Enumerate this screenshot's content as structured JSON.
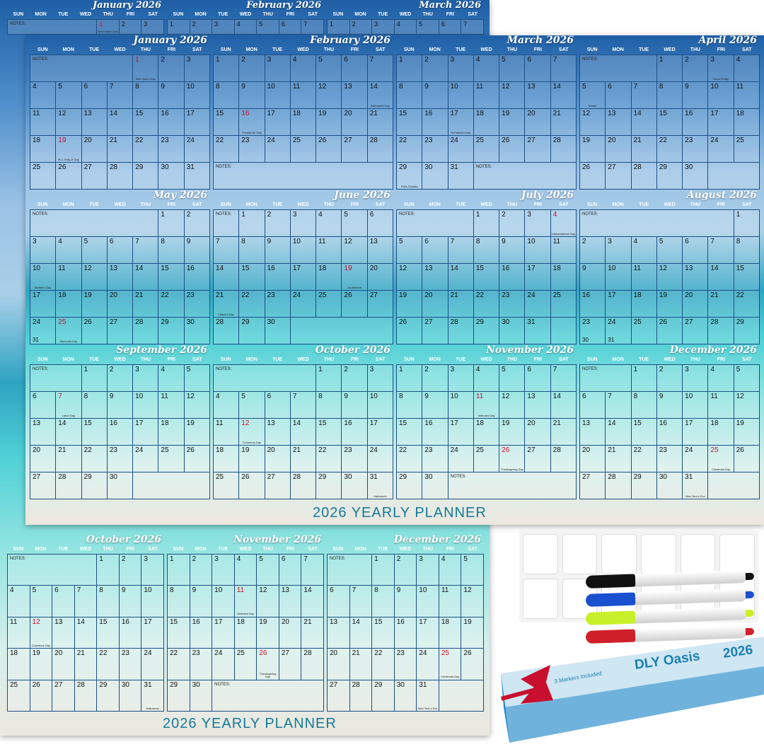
{
  "year": "2026",
  "planner_title": "2026 YEARLY PLANNER",
  "notes_label": "NOTES:",
  "weekdays": [
    "SUN",
    "MON",
    "TUE",
    "WED",
    "THU",
    "FRI",
    "SAT"
  ],
  "months": [
    {
      "name": "January 2026",
      "start": 4,
      "days": 31,
      "holidays": {
        "1": "New Year's Day",
        "19": "M.L. King Jr Day"
      },
      "red": [
        1,
        19
      ]
    },
    {
      "name": "February 2026",
      "start": 0,
      "days": 28,
      "holidays": {
        "14": "Valentine's Day",
        "16": "Presidents' Day"
      },
      "red": [
        16
      ]
    },
    {
      "name": "March 2026",
      "start": 0,
      "days": 31,
      "holidays": {
        "17": "St.Patrick's Day",
        "29": "Palm Sunday"
      },
      "red": []
    },
    {
      "name": "April 2026",
      "start": 3,
      "days": 30,
      "holidays": {
        "3": "Good Friday",
        "5": "Easter"
      },
      "red": []
    },
    {
      "name": "May 2026",
      "start": 5,
      "days": 31,
      "holidays": {
        "10": "Mother's Day",
        "25": "Memorial Day"
      },
      "red": [
        25
      ]
    },
    {
      "name": "June 2026",
      "start": 1,
      "days": 30,
      "holidays": {
        "19": "Juneteenth",
        "21": "Father's Day"
      },
      "red": [
        19
      ]
    },
    {
      "name": "July 2026",
      "start": 3,
      "days": 31,
      "holidays": {
        "4": "Independence Day"
      },
      "red": [
        4
      ]
    },
    {
      "name": "August 2026",
      "start": 6,
      "days": 31,
      "holidays": {},
      "red": []
    },
    {
      "name": "September 2026",
      "start": 2,
      "days": 30,
      "holidays": {
        "7": "Labor Day"
      },
      "red": [
        7
      ]
    },
    {
      "name": "October 2026",
      "start": 4,
      "days": 31,
      "holidays": {
        "12": "Columbus Day",
        "31": "Halloween"
      },
      "red": [
        12
      ]
    },
    {
      "name": "November 2026",
      "start": 0,
      "days": 30,
      "holidays": {
        "11": "Veterans Day",
        "26": "Thanksgiving Day"
      },
      "red": [
        11,
        26
      ]
    },
    {
      "name": "December 2026",
      "start": 2,
      "days": 31,
      "holidays": {
        "25": "Christmas Day",
        "31": "New Year's Eve"
      },
      "red": [
        25
      ]
    }
  ],
  "box": {
    "brand": "DLY Oasis",
    "year": "2026",
    "markers_label": "3 Markers Included"
  },
  "marker_colors": [
    "#111111",
    "#1a4fd0",
    "#c8f02a",
    "#d0202a"
  ],
  "colors": {
    "header_blue": "#1f5fa6",
    "title_teal": "#147a9a",
    "holiday_red": "#c8102e"
  }
}
